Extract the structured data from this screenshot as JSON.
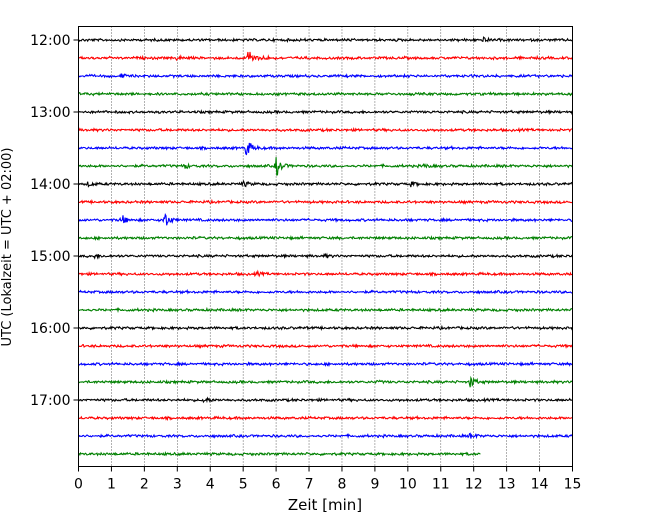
{
  "chart_data": {
    "type": "line",
    "xlabel": "Zeit  [min]",
    "ylabel": "UTC (Lokalzeit = UTC + 02:00)",
    "xlim": [
      0,
      15
    ],
    "x_ticks": [
      "0",
      "1",
      "2",
      "3",
      "4",
      "5",
      "6",
      "7",
      "8",
      "9",
      "10",
      "11",
      "12",
      "13",
      "14",
      "15"
    ],
    "y_ticks": [
      "12:00",
      "13:00",
      "14:00",
      "15:00",
      "16:00",
      "17:00"
    ],
    "grid": "vertical dotted",
    "trace_colors": [
      "#000000",
      "#ff0000",
      "#0000ff",
      "#008000"
    ],
    "traces": [
      {
        "start": "12:00",
        "end_minute": 15,
        "events": [
          {
            "t": 12.3,
            "amp": 0.25
          }
        ]
      },
      {
        "start": "12:15",
        "end_minute": 15,
        "events": [
          {
            "t": 3.0,
            "amp": 0.25
          },
          {
            "t": 5.15,
            "amp": 1.3
          },
          {
            "t": 5.6,
            "amp": 0.25
          }
        ]
      },
      {
        "start": "12:30",
        "end_minute": 15,
        "events": [
          {
            "t": 1.3,
            "amp": 0.2
          }
        ]
      },
      {
        "start": "12:45",
        "end_minute": 15,
        "events": []
      },
      {
        "start": "13:00",
        "end_minute": 15,
        "events": []
      },
      {
        "start": "13:15",
        "end_minute": 15,
        "events": []
      },
      {
        "start": "13:30",
        "end_minute": 15,
        "events": [
          {
            "t": 5.1,
            "amp": 1.1
          }
        ]
      },
      {
        "start": "13:45",
        "end_minute": 15,
        "events": [
          {
            "t": 3.2,
            "amp": 0.3
          },
          {
            "t": 6.0,
            "amp": 1.2
          },
          {
            "t": 10.5,
            "amp": 0.2
          }
        ]
      },
      {
        "start": "14:00",
        "end_minute": 15,
        "events": [
          {
            "t": 0.3,
            "amp": 0.25
          },
          {
            "t": 5.0,
            "amp": 0.3
          },
          {
            "t": 10.1,
            "amp": 0.25
          }
        ]
      },
      {
        "start": "14:15",
        "end_minute": 15,
        "events": []
      },
      {
        "start": "14:30",
        "end_minute": 15,
        "events": [
          {
            "t": 1.3,
            "amp": 0.6
          },
          {
            "t": 2.6,
            "amp": 1.1
          }
        ]
      },
      {
        "start": "14:45",
        "end_minute": 15,
        "events": []
      },
      {
        "start": "15:00",
        "end_minute": 15,
        "events": [
          {
            "t": 0.5,
            "amp": 0.2
          },
          {
            "t": 7.5,
            "amp": 0.15
          }
        ]
      },
      {
        "start": "15:15",
        "end_minute": 15,
        "events": [
          {
            "t": 5.4,
            "amp": 0.2
          }
        ]
      },
      {
        "start": "15:30",
        "end_minute": 15,
        "events": []
      },
      {
        "start": "15:45",
        "end_minute": 15,
        "events": []
      },
      {
        "start": "16:00",
        "end_minute": 15,
        "events": []
      },
      {
        "start": "16:15",
        "end_minute": 15,
        "events": []
      },
      {
        "start": "16:30",
        "end_minute": 15,
        "events": []
      },
      {
        "start": "16:45",
        "end_minute": 15,
        "events": [
          {
            "t": 9.1,
            "amp": 0.15
          },
          {
            "t": 11.9,
            "amp": 0.7
          }
        ]
      },
      {
        "start": "17:00",
        "end_minute": 15,
        "events": [
          {
            "t": 3.8,
            "amp": 0.35
          }
        ]
      },
      {
        "start": "17:15",
        "end_minute": 15,
        "events": []
      },
      {
        "start": "17:30",
        "end_minute": 15,
        "events": [
          {
            "t": 11.9,
            "amp": 0.3
          }
        ]
      },
      {
        "start": "17:45",
        "end_minute": 12.2,
        "events": []
      }
    ]
  }
}
